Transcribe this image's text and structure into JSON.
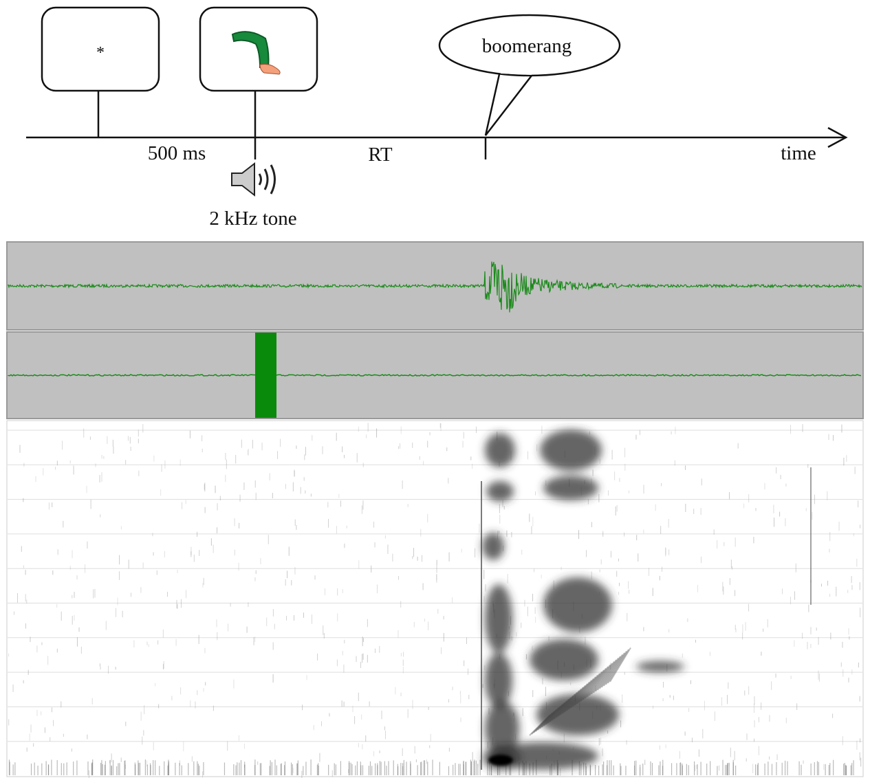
{
  "screens": [
    {
      "label": "*"
    },
    {
      "label": null
    }
  ],
  "speech": "boomerang",
  "intervals": [
    "500 ms",
    "RT"
  ],
  "axis_label": "time",
  "tone_label": "2 kHz tone"
}
